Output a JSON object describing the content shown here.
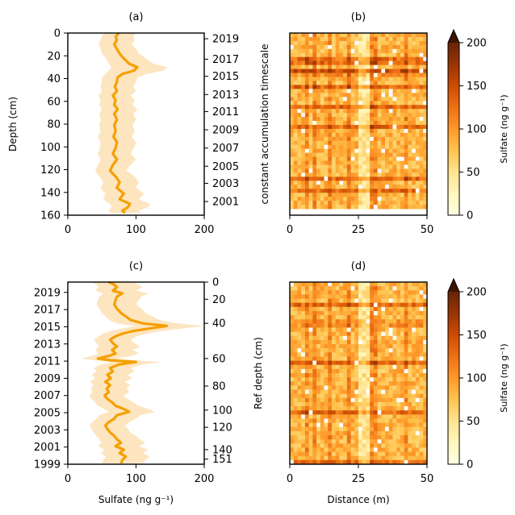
{
  "chart_data": [
    {
      "panel": "(a)",
      "type": "line",
      "x_ticks": [
        "0",
        "100",
        "200"
      ],
      "xlim": [
        0,
        200
      ],
      "ylabel": "Depth (cm)",
      "y_ticks": [
        "0",
        "20",
        "40",
        "60",
        "80",
        "100",
        "120",
        "140",
        "160"
      ],
      "ylim": [
        0,
        160
      ],
      "y_inverted": true,
      "right_axis_label": "constant accumulation timescale",
      "right_ticks": [
        "2019",
        "2017",
        "2015",
        "2013",
        "2011",
        "2009",
        "2007",
        "2005",
        "2003",
        "2001"
      ],
      "right_tick_depths": [
        5,
        23,
        38,
        54,
        69,
        85,
        101,
        117,
        132,
        148
      ],
      "line_color": "#f5a000",
      "band_color": "#fde5c0",
      "series": [
        {
          "values": [
            {
              "sulfate": 75,
              "depth": 0
            },
            {
              "sulfate": 70,
              "depth": 3
            },
            {
              "sulfate": 72,
              "depth": 6
            },
            {
              "sulfate": 68,
              "depth": 10
            },
            {
              "sulfate": 72,
              "depth": 14
            },
            {
              "sulfate": 76,
              "depth": 18
            },
            {
              "sulfate": 80,
              "depth": 21
            },
            {
              "sulfate": 85,
              "depth": 24
            },
            {
              "sulfate": 90,
              "depth": 27
            },
            {
              "sulfate": 102,
              "depth": 30
            },
            {
              "sulfate": 97,
              "depth": 33
            },
            {
              "sulfate": 80,
              "depth": 36
            },
            {
              "sulfate": 73,
              "depth": 39
            },
            {
              "sulfate": 72,
              "depth": 43
            },
            {
              "sulfate": 69,
              "depth": 47
            },
            {
              "sulfate": 72,
              "depth": 51
            },
            {
              "sulfate": 66,
              "depth": 55
            },
            {
              "sulfate": 70,
              "depth": 59
            },
            {
              "sulfate": 68,
              "depth": 63
            },
            {
              "sulfate": 73,
              "depth": 67
            },
            {
              "sulfate": 68,
              "depth": 71
            },
            {
              "sulfate": 72,
              "depth": 76
            },
            {
              "sulfate": 68,
              "depth": 81
            },
            {
              "sulfate": 70,
              "depth": 86
            },
            {
              "sulfate": 67,
              "depth": 91
            },
            {
              "sulfate": 72,
              "depth": 96
            },
            {
              "sulfate": 70,
              "depth": 101
            },
            {
              "sulfate": 66,
              "depth": 106
            },
            {
              "sulfate": 72,
              "depth": 111
            },
            {
              "sulfate": 66,
              "depth": 116
            },
            {
              "sulfate": 62,
              "depth": 121
            },
            {
              "sulfate": 70,
              "depth": 126
            },
            {
              "sulfate": 76,
              "depth": 131
            },
            {
              "sulfate": 72,
              "depth": 136
            },
            {
              "sulfate": 82,
              "depth": 141
            },
            {
              "sulfate": 76,
              "depth": 146
            },
            {
              "sulfate": 91,
              "depth": 150
            },
            {
              "sulfate": 88,
              "depth": 153
            },
            {
              "sulfate": 80,
              "depth": 156
            },
            {
              "sulfate": 84,
              "depth": 158
            }
          ]
        }
      ],
      "band": {
        "lower": [
          52,
          50,
          48,
          45,
          48,
          50,
          54,
          58,
          60,
          64,
          60,
          55,
          50,
          50,
          48,
          50,
          45,
          48,
          46,
          50,
          46,
          48,
          46,
          48,
          44,
          48,
          47,
          44,
          48,
          44,
          40,
          46,
          52,
          48,
          55,
          52,
          62,
          64,
          60,
          62
        ],
        "upper": [
          100,
          96,
          98,
          94,
          100,
          104,
          112,
          118,
          126,
          146,
          140,
          116,
          102,
          100,
          96,
          100,
          92,
          98,
          95,
          102,
          96,
          100,
          95,
          98,
          94,
          100,
          97,
          92,
          100,
          92,
          86,
          98,
          104,
          100,
          112,
          104,
          120,
          118,
          104,
          108
        ]
      }
    },
    {
      "panel": "(b)",
      "type": "heatmap",
      "x_ticks": [
        "0",
        "25",
        "50"
      ],
      "xlim": [
        0,
        50
      ],
      "colorbar_label": "Sulfate (ng g⁻¹)",
      "colorbar_ticks": [
        "0",
        "50",
        "100",
        "150",
        "200"
      ],
      "colorbar_range": [
        0,
        200
      ],
      "colormap": [
        "#ffffe5",
        "#fff7bc",
        "#fee391",
        "#fec44f",
        "#fe9929",
        "#ec7014",
        "#cc4c02",
        "#993404",
        "#662506"
      ],
      "overflow_color": "#3d1502"
    },
    {
      "panel": "(c)",
      "type": "line",
      "x_ticks": [
        "0",
        "100",
        "200"
      ],
      "xlim": [
        0,
        200
      ],
      "xlabel": "Sulfate (ng g⁻¹)",
      "y_ticks": [
        "2019",
        "2017",
        "2015",
        "2013",
        "2011",
        "2009",
        "2007",
        "2005",
        "2003",
        "2001",
        "1999"
      ],
      "ylim": [
        2020.2,
        1999
      ],
      "y_inverted": true,
      "right_axis_label": "Ref depth (cm)",
      "right_ticks": [
        "0",
        "20",
        "40",
        "60",
        "80",
        "100",
        "120",
        "140",
        "151"
      ],
      "right_tick_years": [
        2020.2,
        2018.2,
        2015.4,
        2011.3,
        2008.1,
        2005.3,
        2003.3,
        2000.7,
        1999.6
      ],
      "line_color": "#f5a000",
      "band_color": "#fde5c0",
      "series": [
        {
          "values": [
            {
              "sulfate": 60,
              "year": 2020.2
            },
            {
              "sulfate": 68,
              "year": 2019.9
            },
            {
              "sulfate": 72,
              "year": 2019.6
            },
            {
              "sulfate": 66,
              "year": 2019.2
            },
            {
              "sulfate": 80,
              "year": 2018.9
            },
            {
              "sulfate": 72,
              "year": 2018.5
            },
            {
              "sulfate": 70,
              "year": 2018.1
            },
            {
              "sulfate": 68,
              "year": 2017.6
            },
            {
              "sulfate": 72,
              "year": 2017.1
            },
            {
              "sulfate": 78,
              "year": 2016.6
            },
            {
              "sulfate": 85,
              "year": 2016.2
            },
            {
              "sulfate": 92,
              "year": 2015.8
            },
            {
              "sulfate": 110,
              "year": 2015.4
            },
            {
              "sulfate": 145,
              "year": 2015.1
            },
            {
              "sulfate": 120,
              "year": 2014.8
            },
            {
              "sulfate": 95,
              "year": 2014.5
            },
            {
              "sulfate": 80,
              "year": 2014.2
            },
            {
              "sulfate": 70,
              "year": 2013.9
            },
            {
              "sulfate": 62,
              "year": 2013.5
            },
            {
              "sulfate": 66,
              "year": 2013.1
            },
            {
              "sulfate": 72,
              "year": 2012.7
            },
            {
              "sulfate": 65,
              "year": 2012.3
            },
            {
              "sulfate": 70,
              "year": 2011.9
            },
            {
              "sulfate": 60,
              "year": 2011.6
            },
            {
              "sulfate": 44,
              "year": 2011.3
            },
            {
              "sulfate": 62,
              "year": 2011.1
            },
            {
              "sulfate": 100,
              "year": 2010.9
            },
            {
              "sulfate": 75,
              "year": 2010.6
            },
            {
              "sulfate": 62,
              "year": 2010.2
            },
            {
              "sulfate": 66,
              "year": 2009.8
            },
            {
              "sulfate": 58,
              "year": 2009.4
            },
            {
              "sulfate": 63,
              "year": 2009.0
            },
            {
              "sulfate": 55,
              "year": 2008.6
            },
            {
              "sulfate": 62,
              "year": 2008.2
            },
            {
              "sulfate": 57,
              "year": 2007.8
            },
            {
              "sulfate": 60,
              "year": 2007.4
            },
            {
              "sulfate": 54,
              "year": 2007.0
            },
            {
              "sulfate": 58,
              "year": 2006.6
            },
            {
              "sulfate": 65,
              "year": 2006.2
            },
            {
              "sulfate": 70,
              "year": 2005.8
            },
            {
              "sulfate": 80,
              "year": 2005.5
            },
            {
              "sulfate": 90,
              "year": 2005.1
            },
            {
              "sulfate": 72,
              "year": 2004.7
            },
            {
              "sulfate": 68,
              "year": 2004.3
            },
            {
              "sulfate": 60,
              "year": 2003.9
            },
            {
              "sulfate": 55,
              "year": 2003.5
            },
            {
              "sulfate": 58,
              "year": 2003.1
            },
            {
              "sulfate": 62,
              "year": 2002.7
            },
            {
              "sulfate": 68,
              "year": 2002.3
            },
            {
              "sulfate": 72,
              "year": 2001.9
            },
            {
              "sulfate": 78,
              "year": 2001.5
            },
            {
              "sulfate": 70,
              "year": 2001.1
            },
            {
              "sulfate": 82,
              "year": 2000.7
            },
            {
              "sulfate": 76,
              "year": 2000.3
            },
            {
              "sulfate": 85,
              "year": 1999.9
            },
            {
              "sulfate": 80,
              "year": 1999.5
            },
            {
              "sulfate": 78,
              "year": 1999.1
            }
          ]
        }
      ],
      "band": {
        "lower": [
          36,
          42,
          45,
          40,
          52,
          46,
          44,
          42,
          46,
          50,
          55,
          60,
          72,
          100,
          80,
          62,
          52,
          45,
          38,
          42,
          46,
          40,
          45,
          36,
          20,
          38,
          66,
          48,
          38,
          42,
          35,
          40,
          33,
          38,
          34,
          36,
          32,
          35,
          40,
          44,
          52,
          60,
          46,
          42,
          36,
          32,
          35,
          38,
          42,
          46,
          50,
          44,
          54,
          48,
          56,
          52,
          50
        ],
        "upper": [
          95,
          104,
          110,
          100,
          118,
          108,
          104,
          100,
          108,
          114,
          124,
          134,
          160,
          200,
          168,
          138,
          116,
          102,
          92,
          98,
          106,
          96,
          104,
          92,
          72,
          94,
          138,
          110,
          92,
          98,
          88,
          94,
          84,
          92,
          86,
          90,
          82,
          88,
          96,
          104,
          116,
          128,
          106,
          100,
          90,
          84,
          88,
          92,
          100,
          106,
          114,
          104,
          118,
          110,
          120,
          114,
          110
        ]
      }
    },
    {
      "panel": "(d)",
      "type": "heatmap",
      "x_ticks": [
        "0",
        "25",
        "50"
      ],
      "xlim": [
        0,
        50
      ],
      "xlabel": "Distance (m)",
      "colorbar_label": "Sulfate (ng g⁻¹)",
      "colorbar_ticks": [
        "0",
        "50",
        "100",
        "150",
        "200"
      ],
      "colorbar_range": [
        0,
        200
      ],
      "colormap": [
        "#ffffe5",
        "#fff7bc",
        "#fee391",
        "#fec44f",
        "#fe9929",
        "#ec7014",
        "#cc4c02",
        "#993404",
        "#662506"
      ],
      "overflow_color": "#3d1502"
    }
  ]
}
